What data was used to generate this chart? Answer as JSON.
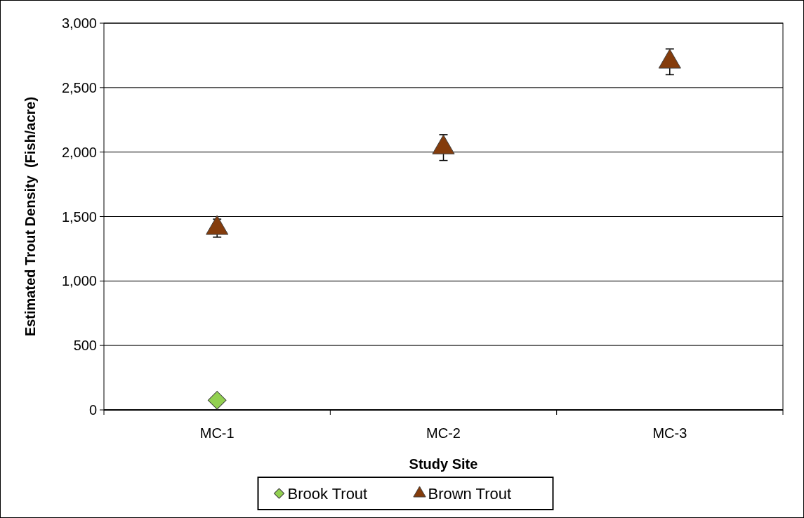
{
  "chart_data": {
    "type": "scatter",
    "xlabel": "Study Site",
    "ylabel": "Estimated Trout Density  (Fish/acre)",
    "categories": [
      "MC-1",
      "MC-2",
      "MC-3"
    ],
    "ylim": [
      0,
      3000
    ],
    "yticks": [
      {
        "value": 0,
        "label": "0"
      },
      {
        "value": 500,
        "label": "500"
      },
      {
        "value": 1000,
        "label": "1,000"
      },
      {
        "value": 1500,
        "label": "1,500"
      },
      {
        "value": 2000,
        "label": "2,000"
      },
      {
        "value": 2500,
        "label": "2,500"
      },
      {
        "value": 3000,
        "label": "3,000"
      }
    ],
    "grid": "y",
    "legend": "bottom",
    "series": [
      {
        "name": "Brook Trout",
        "color": "#92d050",
        "marker": "diamond",
        "values": [
          75,
          null,
          null
        ]
      },
      {
        "name": "Brown Trout",
        "color": "#843c0c",
        "marker": "triangle",
        "values": [
          1410,
          2035,
          2700
        ],
        "errors": [
          70,
          100,
          100
        ]
      }
    ]
  }
}
